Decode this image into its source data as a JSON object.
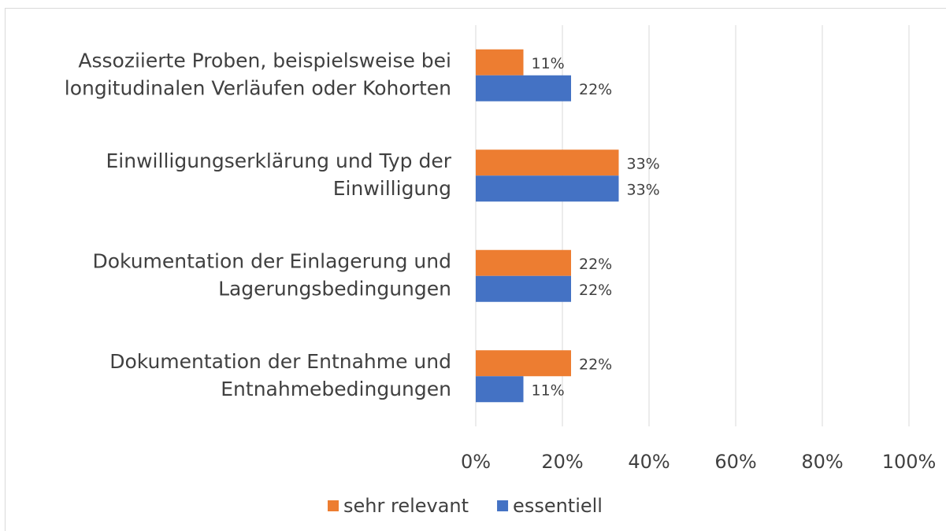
{
  "chart_data": {
    "type": "hbar",
    "categories": [
      [
        "Assoziierte Proben, beispielsweise bei",
        "longitudinalen Verläufen oder Kohorten"
      ],
      [
        "Einwilligungserklärung und Typ der",
        "Einwilligung"
      ],
      [
        "Dokumentation der Einlagerung und",
        "Lagerungsbedingungen"
      ],
      [
        "Dokumentation der Entnahme und",
        "Entnahmebedingungen"
      ]
    ],
    "series": [
      {
        "name": "sehr relevant",
        "color": "#ed7d31",
        "values": [
          11,
          33,
          22,
          22
        ],
        "value_labels": [
          "11%",
          "33%",
          "22%",
          "22%"
        ]
      },
      {
        "name": "essentiell",
        "color": "#4472c4",
        "values": [
          22,
          33,
          22,
          11
        ],
        "value_labels": [
          "22%",
          "33%",
          "22%",
          "11%"
        ]
      }
    ],
    "xlim": [
      0,
      100
    ],
    "xticks": [
      {
        "value": 0,
        "label": "0%"
      },
      {
        "value": 20,
        "label": "20%"
      },
      {
        "value": 40,
        "label": "40%"
      },
      {
        "value": 60,
        "label": "60%"
      },
      {
        "value": 80,
        "label": "80%"
      },
      {
        "value": 100,
        "label": "100%"
      }
    ],
    "grid": true,
    "legend": "bottom"
  }
}
